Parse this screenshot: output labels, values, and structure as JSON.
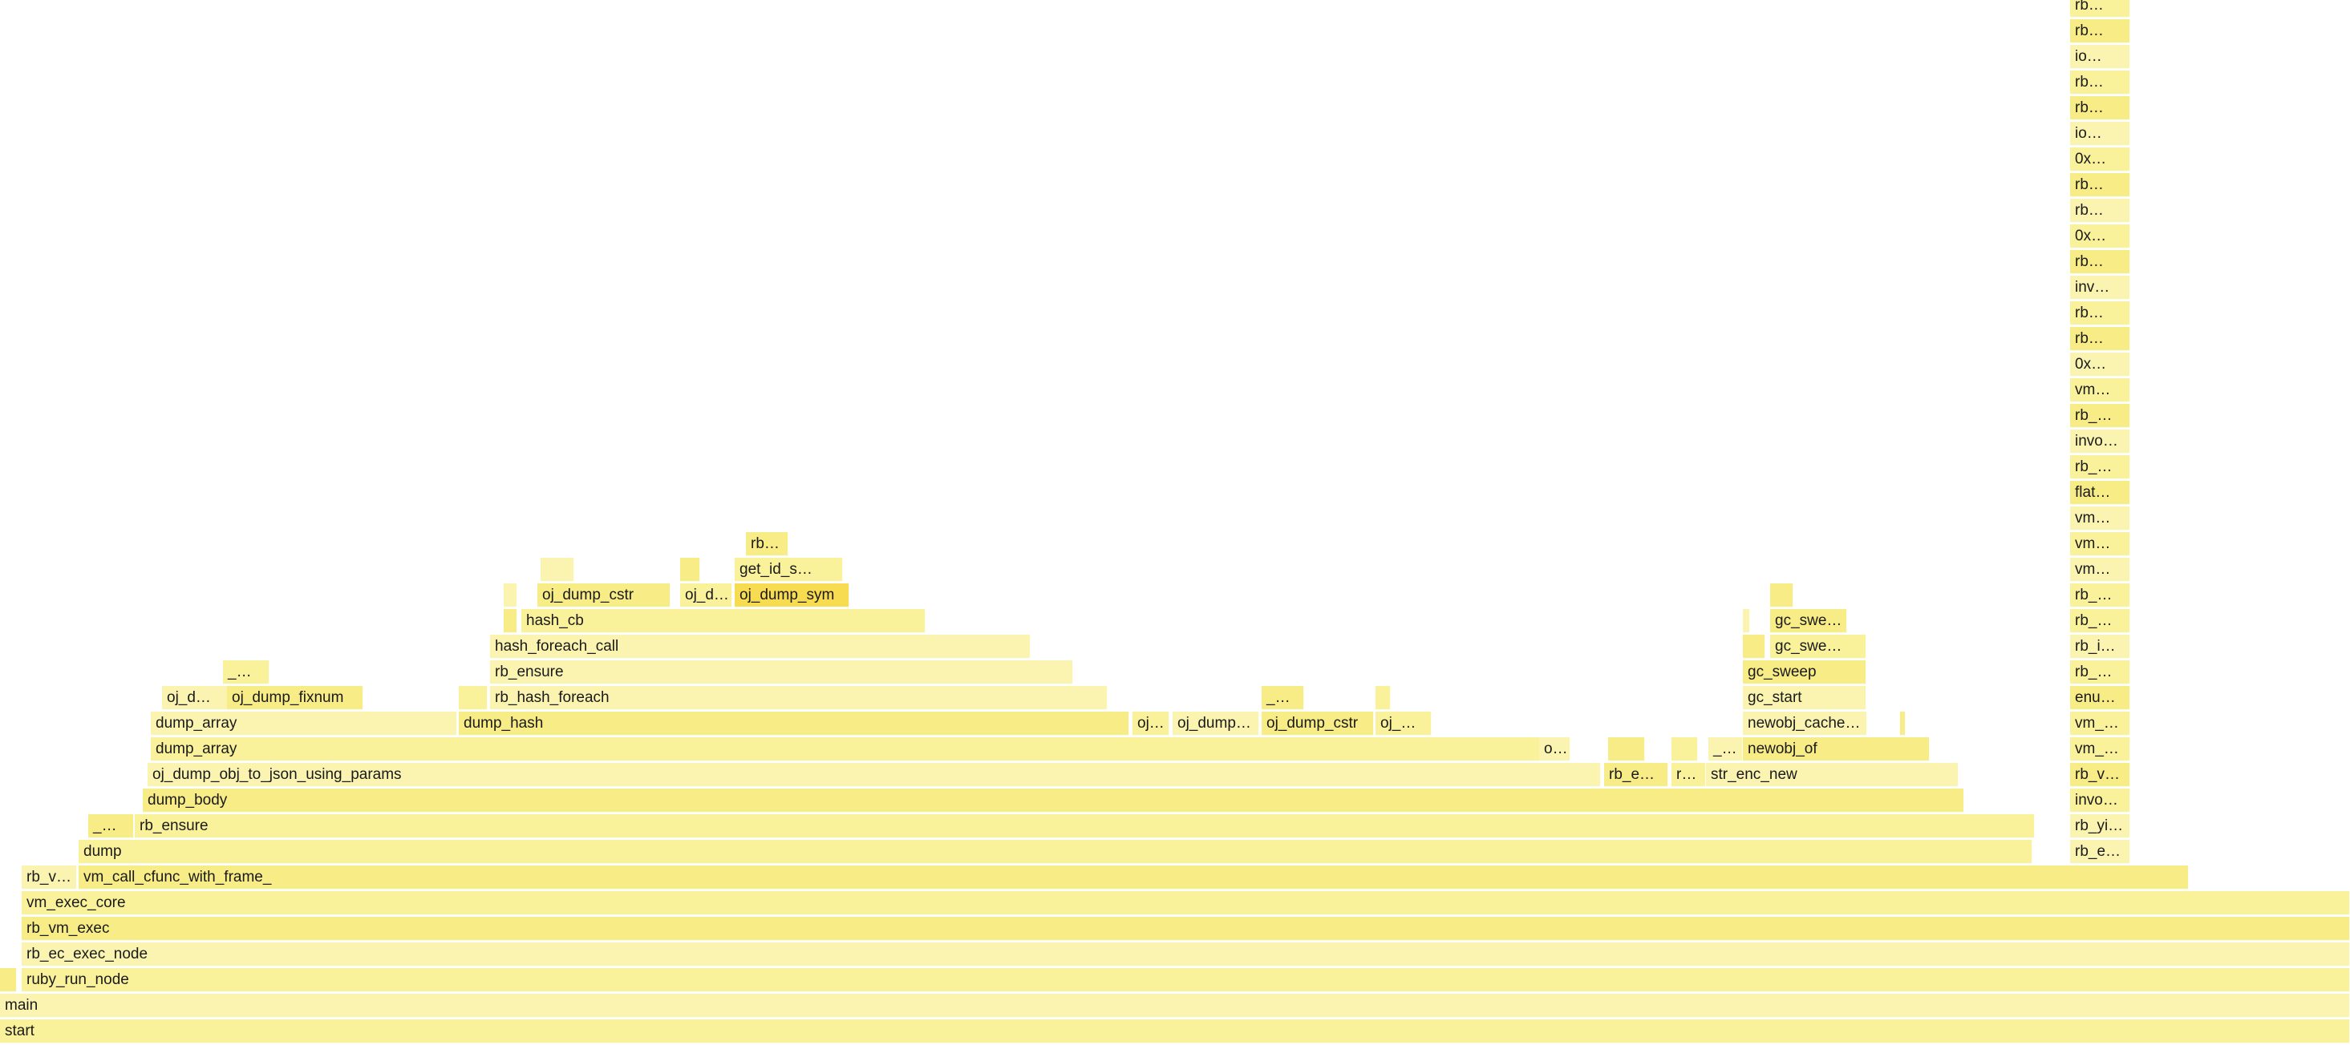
{
  "palette": {
    "light": "#fbf4b0",
    "base": "#faf29a",
    "mid": "#f8ec86",
    "highlight": "#f7db50"
  },
  "frames": [
    {
      "label": "start",
      "level": 0,
      "start": 0,
      "width": 1,
      "interactable": true
    },
    {
      "label": "main",
      "level": 1,
      "start": 0,
      "width": 1,
      "interactable": true
    },
    {
      "label": "",
      "level": 2,
      "start": 0.0,
      "width": 0.007,
      "interactable": true
    },
    {
      "label": "ruby_run_node",
      "level": 2,
      "start": 0.0092,
      "width": 0.9908,
      "interactable": true
    },
    {
      "label": "rb_ec_exec_node",
      "level": 3,
      "start": 0.0092,
      "width": 0.9908,
      "interactable": true
    },
    {
      "label": "rb_vm_exec",
      "level": 4,
      "start": 0.0092,
      "width": 0.9908,
      "interactable": true
    },
    {
      "label": "vm_exec_core",
      "level": 5,
      "start": 0.0092,
      "width": 0.9908,
      "interactable": true
    },
    {
      "label": "rb_v…",
      "level": 6,
      "start": 0.0092,
      "width": 0.0234,
      "interactable": true
    },
    {
      "label": "vm_call_cfunc_with_frame_",
      "level": 6,
      "start": 0.0334,
      "width": 0.898,
      "interactable": true
    },
    {
      "label": "dump",
      "level": 7,
      "start": 0.0334,
      "width": 0.8313,
      "interactable": true
    },
    {
      "label": "rb_e…",
      "level": 7,
      "start": 0.8809,
      "width": 0.0256,
      "interactable": true
    },
    {
      "label": "_…",
      "level": 8,
      "start": 0.0375,
      "width": 0.0195,
      "interactable": true
    },
    {
      "label": "rb_ensure",
      "level": 8,
      "start": 0.0573,
      "width": 0.8085,
      "interactable": true
    },
    {
      "label": "rb_yi…",
      "level": 8,
      "start": 0.8809,
      "width": 0.0256,
      "interactable": true
    },
    {
      "label": "dump_body",
      "level": 9,
      "start": 0.0607,
      "width": 0.775,
      "interactable": true
    },
    {
      "label": "invo…",
      "level": 9,
      "start": 0.8809,
      "width": 0.0256,
      "interactable": true
    },
    {
      "label": "oj_dump_obj_to_json_using_params",
      "level": 10,
      "start": 0.0627,
      "width": 0.6185,
      "interactable": true
    },
    {
      "label": "rb_e…",
      "level": 10,
      "start": 0.6826,
      "width": 0.0273,
      "interactable": true
    },
    {
      "label": "r…",
      "level": 10,
      "start": 0.7111,
      "width": 0.0147,
      "interactable": true
    },
    {
      "label": "str_enc_new",
      "level": 10,
      "start": 0.7261,
      "width": 0.1074,
      "interactable": true
    },
    {
      "label": "rb_v…",
      "level": 10,
      "start": 0.8809,
      "width": 0.0256,
      "interactable": true
    },
    {
      "label": "dump_array",
      "level": 11,
      "start": 0.0641,
      "width": 0.6042,
      "interactable": true
    },
    {
      "label": "o…",
      "level": 11,
      "start": 0.655,
      "width": 0.0133,
      "interactable": true
    },
    {
      "label": "",
      "level": 11,
      "start": 0.6844,
      "width": 0.0157,
      "interactable": true
    },
    {
      "label": "",
      "level": 11,
      "start": 0.7111,
      "width": 0.0114,
      "interactable": true
    },
    {
      "label": "_…",
      "level": 11,
      "start": 0.7268,
      "width": 0.0147,
      "interactable": true
    },
    {
      "label": "newobj_of",
      "level": 11,
      "start": 0.7418,
      "width": 0.0795,
      "interactable": true
    },
    {
      "label": "vm_…",
      "level": 11,
      "start": 0.8809,
      "width": 0.0256,
      "interactable": true
    },
    {
      "label": "dump_array",
      "level": 12,
      "start": 0.0641,
      "width": 0.1303,
      "interactable": true
    },
    {
      "label": "dump_hash",
      "level": 12,
      "start": 0.1952,
      "width": 0.2853,
      "interactable": true
    },
    {
      "label": "oj…",
      "level": 12,
      "start": 0.482,
      "width": 0.0157,
      "interactable": true
    },
    {
      "label": "oj_dump…",
      "level": 12,
      "start": 0.499,
      "width": 0.0369,
      "interactable": true
    },
    {
      "label": "oj_dump_cstr",
      "level": 12,
      "start": 0.5368,
      "width": 0.0479,
      "interactable": true
    },
    {
      "label": "oj_…",
      "level": 12,
      "start": 0.5853,
      "width": 0.024,
      "interactable": true
    },
    {
      "label": "newobj_cache…",
      "level": 12,
      "start": 0.7418,
      "width": 0.053,
      "interactable": true
    },
    {
      "label": "",
      "level": 12,
      "start": 0.8085,
      "width": 0.0024,
      "interactable": true
    },
    {
      "label": "vm_…",
      "level": 12,
      "start": 0.8809,
      "width": 0.0256,
      "interactable": true
    },
    {
      "label": "oj_d…",
      "level": 13,
      "start": 0.069,
      "width": 0.028,
      "interactable": true
    },
    {
      "label": "oj_dump_fixnum",
      "level": 13,
      "start": 0.0966,
      "width": 0.0581,
      "interactable": true
    },
    {
      "label": "",
      "level": 13,
      "start": 0.1952,
      "width": 0.0123,
      "interactable": true
    },
    {
      "label": "rb_hash_foreach",
      "level": 13,
      "start": 0.2087,
      "width": 0.2628,
      "interactable": true
    },
    {
      "label": "_…",
      "level": 13,
      "start": 0.5368,
      "width": 0.0182,
      "interactable": true
    },
    {
      "label": "",
      "level": 13,
      "start": 0.5853,
      "width": 0.0065,
      "interactable": true
    },
    {
      "label": "gc_start",
      "level": 13,
      "start": 0.7418,
      "width": 0.0525,
      "interactable": true
    },
    {
      "label": "enu…",
      "level": 13,
      "start": 0.8809,
      "width": 0.0256,
      "interactable": true
    },
    {
      "label": "_…",
      "level": 14,
      "start": 0.0948,
      "width": 0.0197,
      "interactable": true
    },
    {
      "label": "rb_ensure",
      "level": 14,
      "start": 0.2087,
      "width": 0.2481,
      "interactable": true
    },
    {
      "label": "gc_sweep",
      "level": 14,
      "start": 0.7418,
      "width": 0.0525,
      "interactable": true
    },
    {
      "label": "rb_…",
      "level": 14,
      "start": 0.8809,
      "width": 0.0256,
      "interactable": true
    },
    {
      "label": "hash_foreach_call",
      "level": 15,
      "start": 0.2087,
      "width": 0.23,
      "interactable": true
    },
    {
      "label": "",
      "level": 15,
      "start": 0.7418,
      "width": 0.0095,
      "interactable": true
    },
    {
      "label": "gc_swe…",
      "level": 15,
      "start": 0.7532,
      "width": 0.0411,
      "interactable": true
    },
    {
      "label": "rb_i…",
      "level": 15,
      "start": 0.8809,
      "width": 0.0256,
      "interactable": true
    },
    {
      "label": "",
      "level": 16,
      "start": 0.2144,
      "width": 0.0058,
      "interactable": true
    },
    {
      "label": "hash_cb",
      "level": 16,
      "start": 0.2218,
      "width": 0.172,
      "interactable": true
    },
    {
      "label": "",
      "level": 16,
      "start": 0.7418,
      "width": 0.003,
      "interactable": true
    },
    {
      "label": "gc_swe…",
      "level": 16,
      "start": 0.7532,
      "width": 0.0328,
      "interactable": true
    },
    {
      "label": "rb_…",
      "level": 16,
      "start": 0.8809,
      "width": 0.0256,
      "interactable": true
    },
    {
      "label": "",
      "level": 17,
      "start": 0.2144,
      "width": 0.0058,
      "interactable": true
    },
    {
      "label": "oj_dump_cstr",
      "level": 17,
      "start": 0.2287,
      "width": 0.0566,
      "interactable": true
    },
    {
      "label": "oj_d…",
      "level": 17,
      "start": 0.2894,
      "width": 0.0222,
      "interactable": true
    },
    {
      "label": "oj_dump_sym",
      "level": 17,
      "start": 0.3126,
      "width": 0.0488,
      "interactable": true,
      "hot": true
    },
    {
      "label": "",
      "level": 17,
      "start": 0.7532,
      "width": 0.01,
      "interactable": true
    },
    {
      "label": "rb_…",
      "level": 17,
      "start": 0.8809,
      "width": 0.0256,
      "interactable": true
    },
    {
      "label": "",
      "level": 18,
      "start": 0.23,
      "width": 0.0143,
      "interactable": true
    },
    {
      "label": "",
      "level": 18,
      "start": 0.2894,
      "width": 0.0085,
      "interactable": true
    },
    {
      "label": "get_id_s…",
      "level": 18,
      "start": 0.3126,
      "width": 0.0461,
      "interactable": true
    },
    {
      "label": "vm…",
      "level": 18,
      "start": 0.8809,
      "width": 0.0256,
      "interactable": true
    },
    {
      "label": "rb…",
      "level": 19,
      "start": 0.3174,
      "width": 0.0181,
      "interactable": true
    },
    {
      "label": "vm…",
      "level": 19,
      "start": 0.8809,
      "width": 0.0256,
      "interactable": true
    },
    {
      "label": "vm…",
      "level": 20,
      "start": 0.8809,
      "width": 0.0256,
      "interactable": true
    },
    {
      "label": "flat…",
      "level": 21,
      "start": 0.8809,
      "width": 0.0256,
      "interactable": true
    },
    {
      "label": "rb_…",
      "level": 22,
      "start": 0.8809,
      "width": 0.0256,
      "interactable": true
    },
    {
      "label": "invo…",
      "level": 23,
      "start": 0.8809,
      "width": 0.0256,
      "interactable": true
    },
    {
      "label": "rb_…",
      "level": 24,
      "start": 0.8809,
      "width": 0.0256,
      "interactable": true
    },
    {
      "label": "vm…",
      "level": 25,
      "start": 0.8809,
      "width": 0.0256,
      "interactable": true
    },
    {
      "label": "0x…",
      "level": 26,
      "start": 0.8809,
      "width": 0.0256,
      "interactable": true
    },
    {
      "label": "rb…",
      "level": 27,
      "start": 0.8809,
      "width": 0.0256,
      "interactable": true
    },
    {
      "label": "rb…",
      "level": 28,
      "start": 0.8809,
      "width": 0.0256,
      "interactable": true
    },
    {
      "label": "inv…",
      "level": 29,
      "start": 0.8809,
      "width": 0.0256,
      "interactable": true
    },
    {
      "label": "rb…",
      "level": 30,
      "start": 0.8809,
      "width": 0.0256,
      "interactable": true
    },
    {
      "label": "0x…",
      "level": 31,
      "start": 0.8809,
      "width": 0.0256,
      "interactable": true
    },
    {
      "label": "rb…",
      "level": 32,
      "start": 0.8809,
      "width": 0.0256,
      "interactable": true
    },
    {
      "label": "rb…",
      "level": 33,
      "start": 0.8809,
      "width": 0.0256,
      "interactable": true
    },
    {
      "label": "0x…",
      "level": 34,
      "start": 0.8809,
      "width": 0.0256,
      "interactable": true
    },
    {
      "label": "io…",
      "level": 35,
      "start": 0.8809,
      "width": 0.0256,
      "interactable": true
    },
    {
      "label": "rb…",
      "level": 36,
      "start": 0.8809,
      "width": 0.0256,
      "interactable": true
    },
    {
      "label": "rb…",
      "level": 37,
      "start": 0.8809,
      "width": 0.0256,
      "interactable": true
    },
    {
      "label": "io…",
      "level": 38,
      "start": 0.8809,
      "width": 0.0256,
      "interactable": true
    },
    {
      "label": "rb…",
      "level": 39,
      "start": 0.8809,
      "width": 0.0256,
      "interactable": true
    },
    {
      "label": "rb…",
      "level": 40,
      "start": 0.8809,
      "width": 0.0256,
      "interactable": true
    }
  ]
}
